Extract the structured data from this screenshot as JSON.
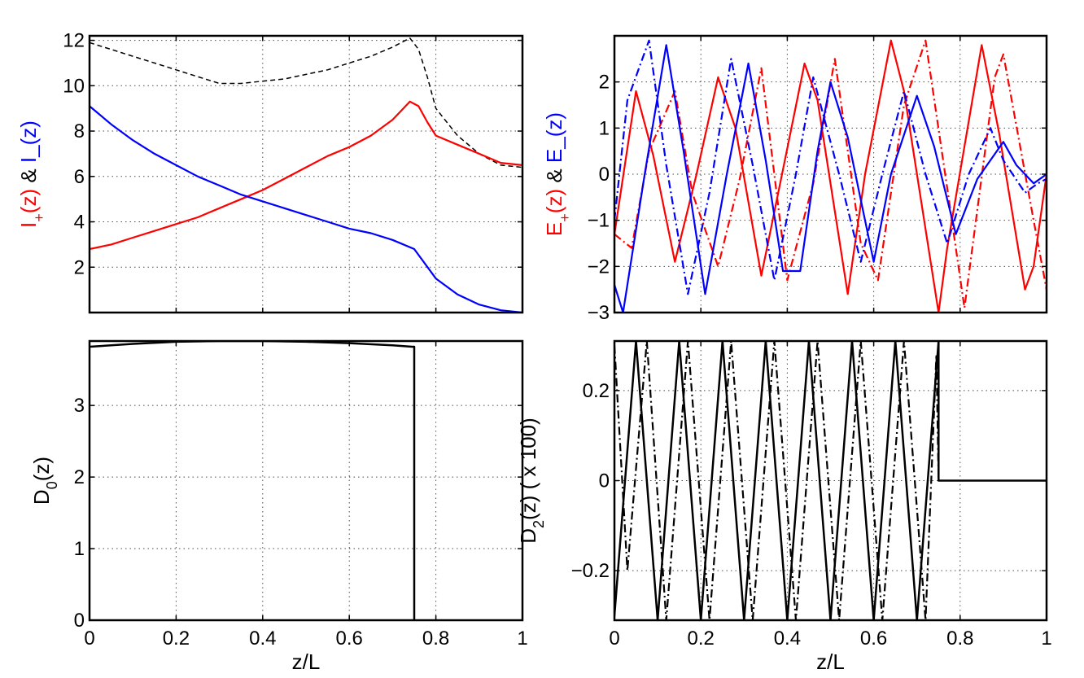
{
  "chart_data": [
    {
      "type": "line",
      "panel": "top-left",
      "xlabel": "",
      "ylabel_parts": [
        {
          "text": "I",
          "color": "#ff0000"
        },
        {
          "text": "+",
          "color": "#ff0000",
          "sub": true
        },
        {
          "text": "(z)",
          "color": "#ff0000"
        },
        {
          "text": " & ",
          "color": "#000000"
        },
        {
          "text": "I_(z)",
          "color": "#0000ff"
        }
      ],
      "xlim": [
        0,
        1
      ],
      "ylim": [
        0,
        12.2
      ],
      "x_ticks": [],
      "y_ticks": [
        2,
        4,
        6,
        8,
        10,
        12
      ],
      "y_tick_labels": [
        "2",
        "4",
        "6",
        "8",
        "10",
        "12"
      ],
      "grid": true,
      "series": [
        {
          "color": "#000000",
          "style": "dashed",
          "width": 1.5,
          "x": [
            0,
            0.05,
            0.1,
            0.15,
            0.2,
            0.25,
            0.3,
            0.35,
            0.4,
            0.45,
            0.5,
            0.55,
            0.6,
            0.65,
            0.7,
            0.74,
            0.76,
            0.78,
            0.8,
            0.85,
            0.9,
            0.95,
            1
          ],
          "y": [
            11.9,
            11.6,
            11.3,
            11.0,
            10.7,
            10.4,
            10.1,
            10.1,
            10.2,
            10.3,
            10.5,
            10.7,
            11.0,
            11.3,
            11.7,
            12.1,
            11.6,
            10.4,
            9.0,
            7.8,
            7.0,
            6.5,
            6.4
          ]
        },
        {
          "color": "#ff0000",
          "style": "solid",
          "width": 2.2,
          "x": [
            0,
            0.05,
            0.1,
            0.15,
            0.2,
            0.25,
            0.3,
            0.35,
            0.4,
            0.45,
            0.5,
            0.55,
            0.6,
            0.65,
            0.7,
            0.74,
            0.76,
            0.78,
            0.8,
            0.85,
            0.9,
            0.95,
            1
          ],
          "y": [
            2.8,
            3.0,
            3.3,
            3.6,
            3.9,
            4.2,
            4.6,
            5.0,
            5.4,
            5.9,
            6.4,
            6.9,
            7.3,
            7.8,
            8.5,
            9.3,
            9.1,
            8.4,
            7.8,
            7.4,
            7.0,
            6.6,
            6.5
          ]
        },
        {
          "color": "#0000ff",
          "style": "solid",
          "width": 2.2,
          "x": [
            0,
            0.05,
            0.1,
            0.15,
            0.2,
            0.25,
            0.3,
            0.35,
            0.4,
            0.45,
            0.5,
            0.55,
            0.6,
            0.65,
            0.7,
            0.75,
            0.8,
            0.85,
            0.9,
            0.95,
            1
          ],
          "y": [
            9.1,
            8.3,
            7.6,
            7.0,
            6.5,
            6.0,
            5.6,
            5.2,
            4.9,
            4.6,
            4.3,
            4.0,
            3.7,
            3.5,
            3.2,
            2.8,
            1.5,
            0.8,
            0.35,
            0.1,
            0.0
          ]
        }
      ]
    },
    {
      "type": "line",
      "panel": "top-right",
      "xlabel": "",
      "ylabel_parts": [
        {
          "text": "E",
          "color": "#ff0000"
        },
        {
          "text": "+",
          "color": "#ff0000",
          "sub": true
        },
        {
          "text": "(z)",
          "color": "#ff0000"
        },
        {
          "text": " & ",
          "color": "#000000"
        },
        {
          "text": "E_(z)",
          "color": "#0000ff"
        }
      ],
      "xlim": [
        0,
        1
      ],
      "ylim": [
        -3,
        3
      ],
      "x_ticks": [],
      "y_ticks": [
        -3,
        -2,
        -1,
        0,
        1,
        2
      ],
      "y_tick_labels": [
        "−3",
        "−2",
        "−1",
        "0",
        "1",
        "2"
      ],
      "grid": true,
      "series": [
        {
          "color": "#ff0000",
          "style": "solid",
          "width": 2.2,
          "x": [
            0,
            0.05,
            0.09,
            0.14,
            0.19,
            0.24,
            0.28,
            0.34,
            0.39,
            0.44,
            0.47,
            0.54,
            0.58,
            0.64,
            0.67,
            0.75,
            0.77,
            0.85,
            0.89,
            0.95,
            0.97,
            1
          ],
          "y": [
            -1.3,
            1.8,
            0.4,
            -1.9,
            0.0,
            2.1,
            1.0,
            -2.2,
            0.1,
            2.4,
            1.6,
            -2.6,
            0.0,
            2.9,
            1.8,
            -3.0,
            -1.6,
            2.8,
            0.9,
            -2.5,
            -2.0,
            0.0
          ]
        },
        {
          "color": "#ff0000",
          "style": "dashdot",
          "width": 2.2,
          "x": [
            0,
            0.04,
            0.08,
            0.14,
            0.18,
            0.24,
            0.29,
            0.34,
            0.4,
            0.46,
            0.51,
            0.57,
            0.61,
            0.67,
            0.72,
            0.77,
            0.81,
            0.88,
            0.9,
            0.97,
            1
          ],
          "y": [
            -1.3,
            -1.6,
            0.5,
            1.8,
            -0.4,
            -2.0,
            -0.1,
            2.3,
            -2.3,
            -0.2,
            2.5,
            -1.5,
            -2.3,
            1.5,
            2.9,
            -0.3,
            -2.9,
            2.1,
            2.6,
            -1.0,
            -2.5
          ]
        },
        {
          "color": "#0000ff",
          "style": "solid",
          "width": 2.2,
          "x": [
            0,
            0.02,
            0.07,
            0.12,
            0.16,
            0.21,
            0.26,
            0.31,
            0.35,
            0.39,
            0.43,
            0.47,
            0.5,
            0.54,
            0.6,
            0.64,
            0.7,
            0.74,
            0.79,
            0.84,
            0.9,
            0.93,
            0.97,
            1
          ],
          "y": [
            -2.4,
            -3.0,
            0.0,
            2.8,
            0.5,
            -2.6,
            0.0,
            2.4,
            0.3,
            -2.1,
            -2.1,
            0.5,
            2.0,
            0.8,
            -1.9,
            0.0,
            1.7,
            0.6,
            -1.3,
            -0.1,
            0.7,
            0.2,
            -0.2,
            0.0
          ]
        },
        {
          "color": "#0000ff",
          "style": "dashdot",
          "width": 2.2,
          "x": [
            0,
            0.03,
            0.08,
            0.12,
            0.17,
            0.22,
            0.27,
            0.32,
            0.37,
            0.42,
            0.46,
            0.52,
            0.57,
            0.62,
            0.67,
            0.72,
            0.77,
            0.82,
            0.87,
            0.9,
            0.95,
            0.98,
            1
          ],
          "y": [
            -1.0,
            1.6,
            2.9,
            0.2,
            -2.6,
            -0.4,
            2.5,
            0.2,
            -2.3,
            0.0,
            2.1,
            0.0,
            -1.9,
            0.0,
            1.8,
            0.0,
            -1.5,
            0.0,
            1.0,
            0.3,
            -0.4,
            -0.2,
            -0.1
          ]
        }
      ]
    },
    {
      "type": "line",
      "panel": "bottom-left",
      "xlabel": "z/L",
      "ylabel_parts": [
        {
          "text": "D",
          "color": "#000000"
        },
        {
          "text": "0",
          "color": "#000000",
          "sub": true
        },
        {
          "text": "(z)",
          "color": "#000000"
        }
      ],
      "xlim": [
        0,
        1
      ],
      "ylim": [
        0,
        3.9
      ],
      "x_ticks": [
        0,
        0.2,
        0.4,
        0.6,
        0.8,
        1
      ],
      "x_tick_labels": [
        "0",
        "0.2",
        "0.4",
        "0.6",
        "0.8",
        "1"
      ],
      "y_ticks": [
        0,
        1,
        2,
        3
      ],
      "y_tick_labels": [
        "0",
        "1",
        "2",
        "3"
      ],
      "grid": true,
      "series": [
        {
          "color": "#000000",
          "style": "solid",
          "width": 2.5,
          "x": [
            0,
            0.1,
            0.2,
            0.3,
            0.4,
            0.5,
            0.6,
            0.7,
            0.745,
            0.75,
            0.75
          ],
          "y": [
            3.82,
            3.86,
            3.89,
            3.9,
            3.9,
            3.89,
            3.87,
            3.84,
            3.82,
            3.82,
            0.0
          ]
        }
      ]
    },
    {
      "type": "line",
      "panel": "bottom-right",
      "xlabel": "z/L",
      "ylabel_parts": [
        {
          "text": "D",
          "color": "#000000"
        },
        {
          "text": "2",
          "color": "#000000",
          "sub": true
        },
        {
          "text": "(z) ( x 100)",
          "color": "#000000"
        }
      ],
      "xlim": [
        0,
        1
      ],
      "ylim": [
        -0.31,
        0.31
      ],
      "x_ticks": [
        0,
        0.2,
        0.4,
        0.6,
        0.8,
        1
      ],
      "x_tick_labels": [
        "0",
        "0.2",
        "0.4",
        "0.6",
        "0.8",
        "1"
      ],
      "y_ticks": [
        -0.2,
        0,
        0.2
      ],
      "y_tick_labels": [
        "−0.2",
        "0",
        "0.2"
      ],
      "grid": true,
      "series": [
        {
          "color": "#000000",
          "style": "solid",
          "width": 2.5,
          "x": [
            0,
            0.05,
            0.1,
            0.15,
            0.2,
            0.25,
            0.3,
            0.35,
            0.4,
            0.45,
            0.5,
            0.55,
            0.6,
            0.65,
            0.7,
            0.75,
            0.75,
            1
          ],
          "y": [
            -0.3,
            0.31,
            -0.31,
            0.31,
            -0.31,
            0.31,
            -0.31,
            0.31,
            -0.31,
            0.31,
            -0.31,
            0.31,
            -0.31,
            0.31,
            -0.31,
            0.31,
            0.0,
            0.0
          ]
        },
        {
          "color": "#000000",
          "style": "dashdot",
          "width": 2.2,
          "x": [
            0,
            0.03,
            0.075,
            0.12,
            0.17,
            0.22,
            0.27,
            0.32,
            0.37,
            0.42,
            0.47,
            0.52,
            0.57,
            0.62,
            0.67,
            0.72,
            0.745,
            0.75
          ],
          "y": [
            0.3,
            -0.2,
            0.31,
            -0.31,
            0.31,
            -0.31,
            0.31,
            -0.31,
            0.31,
            -0.31,
            0.31,
            -0.31,
            0.31,
            -0.31,
            0.31,
            -0.31,
            0.28,
            0.0
          ]
        }
      ]
    }
  ]
}
